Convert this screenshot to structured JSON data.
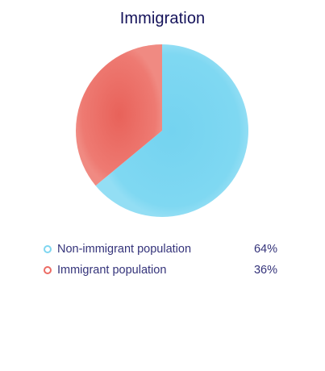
{
  "chart_data": {
    "type": "pie",
    "title": "Immigration",
    "categories": [
      "Non-immigrant population",
      "Immigrant population"
    ],
    "values": [
      64,
      36
    ],
    "value_labels": [
      "64%",
      "36%"
    ],
    "colors": [
      "#7fd6f0",
      "#ec6b64"
    ],
    "legend_placement": "bottom"
  }
}
